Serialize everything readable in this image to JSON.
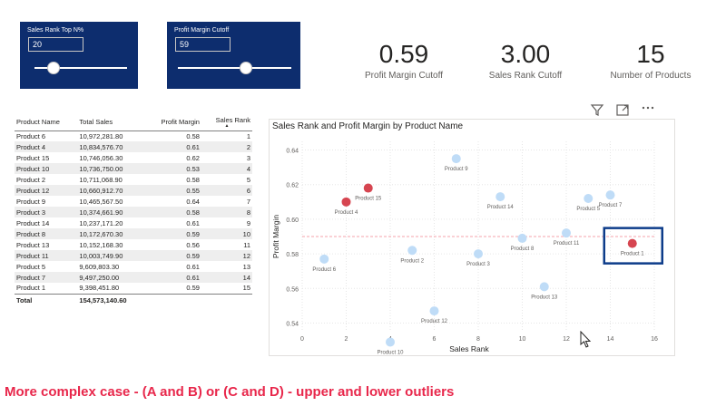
{
  "slicers": [
    {
      "title": "Sales Rank Top N%",
      "value": "20",
      "fraction": 0.2
    },
    {
      "title": "Profit Margin Cutoff",
      "value": "59",
      "fraction": 0.6
    }
  ],
  "kpis": [
    {
      "value": "0.59",
      "label": "Profit Margin Cutoff"
    },
    {
      "value": "3.00",
      "label": "Sales Rank Cutoff"
    },
    {
      "value": "15",
      "label": "Number of Products"
    }
  ],
  "toolbar": {
    "filter_icon": "filter-icon",
    "focus_icon": "focus-mode-icon",
    "more_icon": "more-options-icon"
  },
  "table": {
    "headers": [
      "Product Name",
      "Total Sales",
      "Profit Margin",
      "Sales Rank"
    ],
    "rows": [
      [
        "Product 6",
        "10,972,281.80",
        "0.58",
        "1"
      ],
      [
        "Product 4",
        "10,834,576.70",
        "0.61",
        "2"
      ],
      [
        "Product 15",
        "10,746,056.30",
        "0.62",
        "3"
      ],
      [
        "Product 10",
        "10,736,750.00",
        "0.53",
        "4"
      ],
      [
        "Product 2",
        "10,711,068.90",
        "0.58",
        "5"
      ],
      [
        "Product 12",
        "10,660,912.70",
        "0.55",
        "6"
      ],
      [
        "Product 9",
        "10,465,567.50",
        "0.64",
        "7"
      ],
      [
        "Product 3",
        "10,374,661.90",
        "0.58",
        "8"
      ],
      [
        "Product 14",
        "10,237,171.20",
        "0.61",
        "9"
      ],
      [
        "Product 8",
        "10,172,670.30",
        "0.59",
        "10"
      ],
      [
        "Product 13",
        "10,152,168.30",
        "0.56",
        "11"
      ],
      [
        "Product 11",
        "10,003,749.90",
        "0.59",
        "12"
      ],
      [
        "Product 5",
        "9,609,803.30",
        "0.61",
        "13"
      ],
      [
        "Product 7",
        "9,497,250.00",
        "0.61",
        "14"
      ],
      [
        "Product 1",
        "9,398,451.80",
        "0.59",
        "15"
      ]
    ],
    "total": [
      "Total",
      "154,573,140.60",
      "",
      ""
    ]
  },
  "chart_data": {
    "type": "scatter",
    "title": "Sales Rank and Profit Margin by Product Name",
    "xlabel": "Sales Rank",
    "ylabel": "Profit Margin",
    "xlim": [
      0,
      16
    ],
    "ylim": [
      0.535,
      0.645
    ],
    "x_ticks": [
      "0",
      "2",
      "4",
      "6",
      "8",
      "10",
      "12",
      "14",
      "16"
    ],
    "y_ticks": [
      "0.54",
      "0.56",
      "0.58",
      "0.60",
      "0.62",
      "0.64"
    ],
    "reference_line_y": 0.59,
    "grid": true,
    "colors": {
      "normal": "#bfdcf7",
      "outlier": "#d64550",
      "reference": "#f4a3ab",
      "highlight_box": "#0d3c8a"
    },
    "points": [
      {
        "name": "Product 6",
        "x": 1,
        "y": 0.577,
        "outlier": false
      },
      {
        "name": "Product 4",
        "x": 2,
        "y": 0.61,
        "outlier": true
      },
      {
        "name": "Product 15",
        "x": 3,
        "y": 0.618,
        "outlier": true
      },
      {
        "name": "Product 10",
        "x": 4,
        "y": 0.529,
        "outlier": false
      },
      {
        "name": "Product 2",
        "x": 5,
        "y": 0.582,
        "outlier": false
      },
      {
        "name": "Product 12",
        "x": 6,
        "y": 0.547,
        "outlier": false
      },
      {
        "name": "Product 9",
        "x": 7,
        "y": 0.635,
        "outlier": false
      },
      {
        "name": "Product 3",
        "x": 8,
        "y": 0.58,
        "outlier": false
      },
      {
        "name": "Product 14",
        "x": 9,
        "y": 0.613,
        "outlier": false
      },
      {
        "name": "Product 8",
        "x": 10,
        "y": 0.589,
        "outlier": false
      },
      {
        "name": "Product 13",
        "x": 11,
        "y": 0.561,
        "outlier": false
      },
      {
        "name": "Product 11",
        "x": 12,
        "y": 0.592,
        "outlier": false
      },
      {
        "name": "Product 5",
        "x": 13,
        "y": 0.612,
        "outlier": false
      },
      {
        "name": "Product 7",
        "x": 14,
        "y": 0.614,
        "outlier": false
      },
      {
        "name": "Product 1",
        "x": 15,
        "y": 0.586,
        "outlier": true
      }
    ],
    "highlight": "Product 1"
  },
  "caption": "More complex case - (A and B) or (C and D) - upper and lower outliers"
}
